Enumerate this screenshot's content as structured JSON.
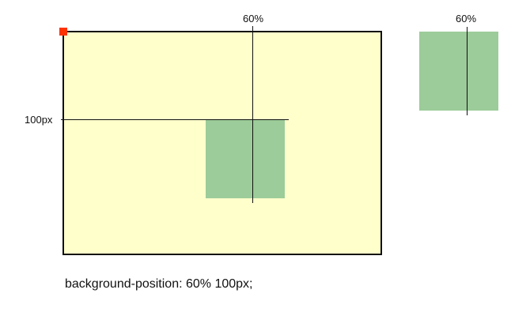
{
  "labels": {
    "x_position": "60%",
    "y_position": "100px",
    "reference_x_position": "60%"
  },
  "caption": "background-position: 60% 100px;",
  "colors": {
    "container_fill": "#ffffcc",
    "container_border": "#111111",
    "background_image_fill": "#9ccc99",
    "origin_marker": "#ff3300",
    "guide_line": "#111111"
  }
}
